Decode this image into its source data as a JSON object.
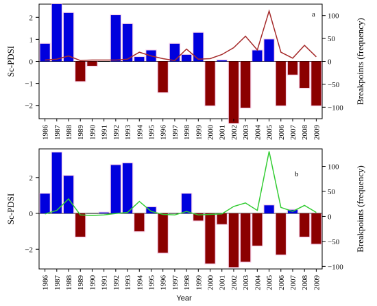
{
  "chart_data": [
    {
      "type": "bar",
      "panel_label": "a",
      "categories": [
        "1986",
        "1987",
        "1988",
        "1989",
        "1990",
        "1991",
        "1992",
        "1993",
        "1994",
        "1995",
        "1996",
        "1997",
        "1998",
        "1999",
        "2000",
        "2001",
        "2002",
        "2003",
        "2004",
        "2005",
        "2006",
        "2007",
        "2008",
        "2009"
      ],
      "series": [
        {
          "values": [
            0.8,
            2.6,
            2.2,
            -0.9,
            -0.2,
            0.0,
            2.1,
            1.7,
            0.2,
            0.5,
            -1.4,
            0.8,
            0.3,
            1.3,
            -2.0,
            0.05,
            -2.8,
            -2.1,
            0.5,
            1.0,
            -2.0,
            -0.6,
            -1.2,
            -2.0
          ],
          "type": "bar",
          "axis": "left",
          "positive_color": "#0000dd",
          "negative_color": "#8b0000"
        },
        {
          "values": [
            3,
            5,
            12,
            2,
            3,
            3,
            3,
            5,
            20,
            12,
            6,
            2,
            27,
            5,
            6,
            15,
            30,
            55,
            25,
            110,
            20,
            7,
            35,
            10
          ],
          "type": "line",
          "axis": "right",
          "color": "#a52a2a"
        }
      ],
      "ylabel": "Sc-PDSI",
      "y2label": "Breakpoints (frequency)",
      "ylim": [
        -2.6,
        2.6
      ],
      "yticks": [
        -2,
        -1,
        0,
        1,
        2
      ],
      "y2lim": [
        -125,
        125
      ],
      "y2ticks": [
        -100,
        -50,
        0,
        50,
        100
      ]
    },
    {
      "type": "bar",
      "panel_label": "b",
      "categories": [
        "1986",
        "1987",
        "1988",
        "1989",
        "1990",
        "1991",
        "1992",
        "1993",
        "1994",
        "1995",
        "1996",
        "1997",
        "1998",
        "1999",
        "2000",
        "2001",
        "2002",
        "2003",
        "2004",
        "2005",
        "2006",
        "2007",
        "2008",
        "2009"
      ],
      "series": [
        {
          "values": [
            1.1,
            3.4,
            2.1,
            -1.3,
            0.0,
            0.05,
            2.7,
            2.8,
            -1.0,
            0.35,
            -2.2,
            0.0,
            1.1,
            -0.4,
            -2.8,
            -0.6,
            -3.0,
            -2.7,
            -1.8,
            0.45,
            -2.3,
            0.2,
            -1.3,
            -1.7
          ],
          "type": "bar",
          "axis": "left",
          "positive_color": "#0000dd",
          "negative_color": "#8b0000"
        },
        {
          "values": [
            5,
            12,
            35,
            3,
            2,
            3,
            6,
            8,
            30,
            10,
            4,
            3,
            10,
            3,
            4,
            5,
            20,
            27,
            12,
            130,
            18,
            10,
            22,
            8
          ],
          "type": "line",
          "axis": "right",
          "color": "#33cc33"
        }
      ],
      "ylabel": "Sc-PDSI",
      "y2label": "Breakpoints (frequency)",
      "xlabel": "Year",
      "ylim": [
        -3.1,
        3.6
      ],
      "yticks": [
        -2,
        0,
        2
      ],
      "y2lim": [
        -105,
        135
      ],
      "y2ticks": [
        -100,
        -50,
        0,
        50,
        100
      ]
    }
  ]
}
